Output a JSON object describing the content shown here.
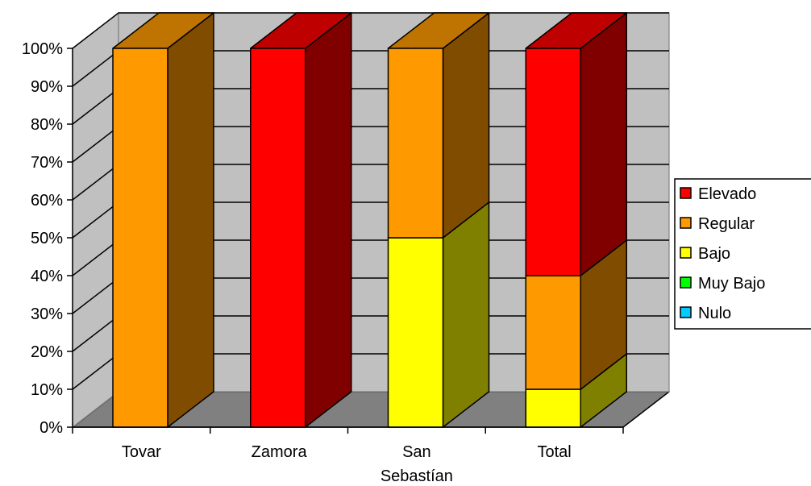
{
  "chart_data": {
    "type": "bar",
    "stacked": true,
    "percent_stacked": true,
    "three_d": true,
    "categories": [
      "Tovar",
      "Zamora",
      "San\nSebastían",
      "Total"
    ],
    "series": [
      {
        "name": "Nulo",
        "color": "#00ccff",
        "values": [
          0,
          0,
          0,
          0
        ]
      },
      {
        "name": "Muy Bajo",
        "color": "#00ff00",
        "values": [
          0,
          0,
          0,
          0
        ]
      },
      {
        "name": "Bajo",
        "color": "#ffff00",
        "values": [
          0,
          0,
          50,
          10
        ]
      },
      {
        "name": "Regular",
        "color": "#ff9900",
        "values": [
          100,
          0,
          50,
          30
        ]
      },
      {
        "name": "Elevado",
        "color": "#ff0000",
        "values": [
          0,
          100,
          0,
          60
        ]
      }
    ],
    "legend_order": [
      "Elevado",
      "Regular",
      "Bajo",
      "Muy Bajo",
      "Nulo"
    ],
    "y_ticks": [
      "0%",
      "10%",
      "20%",
      "30%",
      "40%",
      "50%",
      "60%",
      "70%",
      "80%",
      "90%",
      "100%"
    ],
    "ylim": [
      0,
      100
    ],
    "grid": true,
    "legend_position": "right",
    "colors": {
      "wall": "#c0c0c0",
      "floor": "#808080"
    }
  }
}
